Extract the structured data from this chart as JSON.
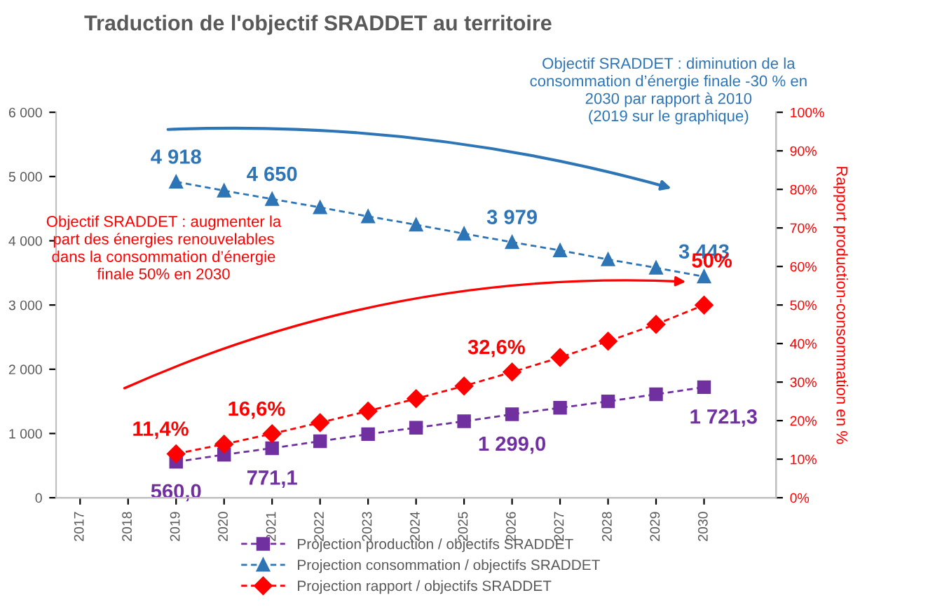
{
  "chart_data": {
    "type": "line",
    "title": "Traduction de l'objectif SRADDET au territoire",
    "y2label": "Rapport production-consommation en %",
    "categories": [
      "2017",
      "2018",
      "2019",
      "2020",
      "2021",
      "2022",
      "2023",
      "2024",
      "2025",
      "2026",
      "2027",
      "2028",
      "2029",
      "2030"
    ],
    "series": [
      {
        "name": "Projection production / objectifs SRADDET",
        "color": "#7030a0",
        "marker": "square",
        "values": [
          null,
          null,
          560.0,
          670,
          771.1,
          880,
          990,
          1090,
          1190,
          1299.0,
          1400,
          1500,
          1610,
          1721.3
        ],
        "value_labels": [
          null,
          null,
          "560,0",
          null,
          "771,1",
          null,
          null,
          null,
          null,
          "1 299,0",
          null,
          null,
          null,
          "1 721,3"
        ]
      },
      {
        "name": "Projection consommation / objectifs SRADDET",
        "color": "#2e75b6",
        "marker": "triangle",
        "values": [
          null,
          null,
          4918,
          4780,
          4650,
          4520,
          4380,
          4250,
          4110,
          3979,
          3850,
          3710,
          3580,
          3443
        ],
        "value_labels": [
          null,
          null,
          "4 918",
          null,
          "4 650",
          null,
          null,
          null,
          null,
          "3 979",
          null,
          null,
          null,
          "3 443"
        ]
      },
      {
        "name": "Projection rapport / objectifs SRADDET",
        "color": "#ff0000",
        "marker": "diamond",
        "axis": "y2",
        "values": [
          null,
          null,
          11.4,
          13.9,
          16.6,
          19.5,
          22.5,
          25.7,
          29.0,
          32.6,
          36.4,
          40.6,
          45.0,
          50
        ],
        "value_labels": [
          null,
          null,
          "11,4%",
          null,
          "16,6%",
          null,
          null,
          null,
          null,
          "32,6%",
          null,
          null,
          null,
          "50%"
        ]
      }
    ],
    "line_style": "dashed",
    "ylim": [
      0,
      6000
    ],
    "yticks": [
      0,
      {
        "value": 1000,
        "label": "1 000"
      },
      {
        "value": 2000,
        "label": "2 000"
      },
      {
        "value": 3000,
        "label": "3 000"
      },
      {
        "value": 4000,
        "label": "4 000"
      },
      {
        "value": 5000,
        "label": "5 000"
      },
      {
        "value": 6000,
        "label": "6 000"
      }
    ],
    "y2lim": [
      0,
      100
    ],
    "y2ticks": [
      {
        "value": 0,
        "label": "0%"
      },
      {
        "value": 10,
        "label": "10%"
      },
      {
        "value": 20,
        "label": "20%"
      },
      {
        "value": 30,
        "label": "30%"
      },
      {
        "value": 40,
        "label": "40%"
      },
      {
        "value": 50,
        "label": "50%"
      },
      {
        "value": 60,
        "label": "60%"
      },
      {
        "value": 70,
        "label": "70%"
      },
      {
        "value": 80,
        "label": "80%"
      },
      {
        "value": 90,
        "label": "90%"
      },
      {
        "value": 100,
        "label": "100%"
      }
    ],
    "grid": false,
    "legend": "bottom",
    "annotations": [
      "Objectif SRADDET : diminution de la\nconsommation d’énergie finale -30 % en\n2030 par rapport à 2010\n(2019 sur le graphique)",
      "Objectif SRADDET : augmenter la\npart des énergies renouvelables\ndans la consommation d’énergie\nfinale 50% en 2030"
    ]
  }
}
